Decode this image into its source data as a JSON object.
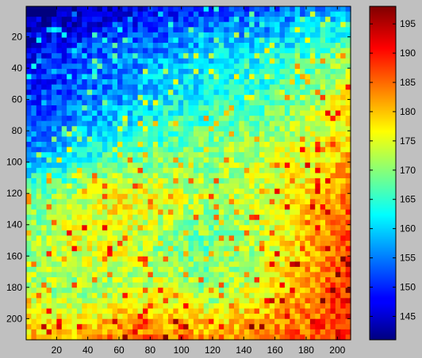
{
  "chart_data": {
    "type": "heatmap",
    "title": "",
    "xlabel": "",
    "ylabel": "",
    "colormap": "jet",
    "background_color": "#c0c0c0",
    "xlim": [
      1,
      208
    ],
    "ylim": [
      1,
      213
    ],
    "clim": [
      141,
      198
    ],
    "x_ticks": [
      20,
      40,
      60,
      80,
      100,
      120,
      140,
      160,
      180,
      200
    ],
    "y_ticks": [
      20,
      40,
      60,
      80,
      100,
      120,
      140,
      160,
      180,
      200
    ],
    "colorbar": {
      "placement": "right",
      "ticks": [
        145,
        150,
        155,
        160,
        165,
        170,
        175,
        180,
        185,
        190,
        195
      ]
    },
    "description_grid": {
      "rows": 8,
      "cols": 8,
      "approx_values": [
        [
          143,
          143,
          145,
          148,
          150,
          152,
          155,
          158
        ],
        [
          148,
          152,
          155,
          157,
          160,
          162,
          165,
          170
        ],
        [
          150,
          153,
          157,
          162,
          164,
          166,
          170,
          178
        ],
        [
          156,
          160,
          165,
          168,
          170,
          172,
          175,
          180
        ],
        [
          168,
          172,
          178,
          175,
          172,
          174,
          178,
          185
        ],
        [
          170,
          176,
          175,
          170,
          168,
          172,
          180,
          188
        ],
        [
          174,
          170,
          172,
          175,
          170,
          176,
          182,
          190
        ],
        [
          180,
          182,
          186,
          185,
          183,
          184,
          186,
          190
        ]
      ]
    }
  }
}
